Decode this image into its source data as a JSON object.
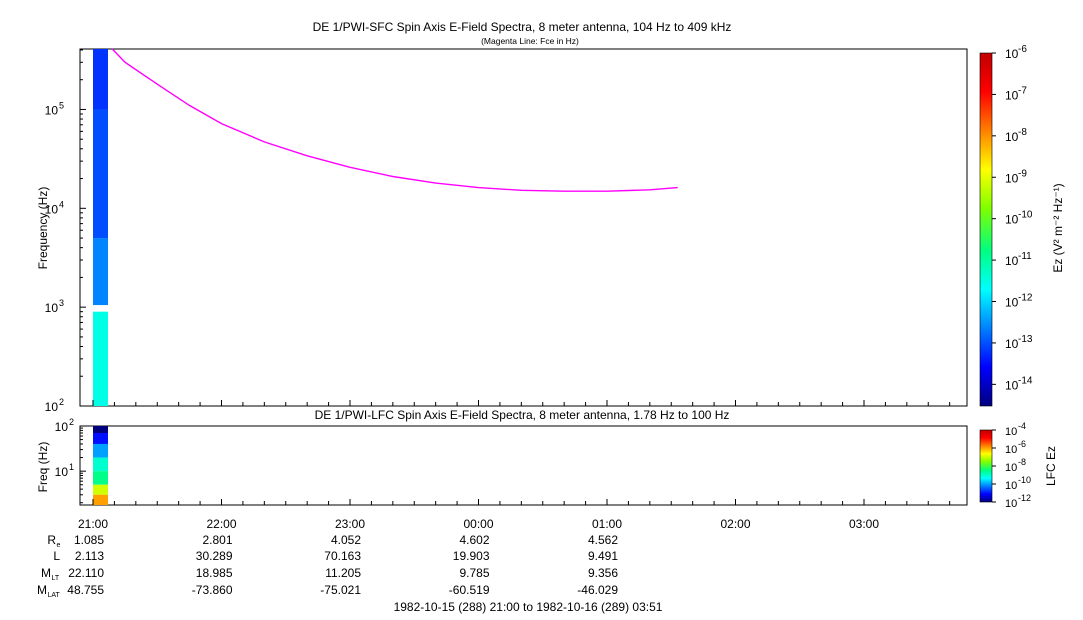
{
  "upper_panel": {
    "title": "DE 1/PWI-SFC  Spin Axis E-Field Spectra, 8 meter antenna, 104 Hz to 409 kHz",
    "subtitle": "(Magenta Line: Fce in Hz)",
    "ylabel": "Frequency (Hz)",
    "colorbar_label": "Ez (V² m⁻² Hz⁻¹)"
  },
  "lower_panel": {
    "title": "DE 1/PWI-LFC  Spin Axis E-Field Spectra, 8 meter antenna, 1.78 Hz to 100 Hz",
    "ylabel": "Freq (Hz)",
    "colorbar_label": "LFC Ez"
  },
  "time_axis": {
    "ticks": [
      "21:00",
      "22:00",
      "23:00",
      "00:00",
      "01:00",
      "02:00",
      "03:00"
    ],
    "range_label": "1982-10-15 (288) 21:00 to 1982-10-16 (289) 03:51"
  },
  "ephemeris": [
    {
      "label": "R",
      "sub": "e",
      "values": [
        "1.085",
        "2.801",
        "4.052",
        "4.602",
        "4.562"
      ]
    },
    {
      "label": "L",
      "sub": "",
      "values": [
        "2.113",
        "30.289",
        "70.163",
        "19.903",
        "9.491"
      ]
    },
    {
      "label": "M",
      "sub": "LT",
      "values": [
        "22.110",
        "18.985",
        "11.205",
        "9.785",
        "9.356"
      ]
    },
    {
      "label": "M",
      "sub": "LAT",
      "values": [
        "48.755",
        "-73.860",
        "-75.021",
        "-60.519",
        "-46.029"
      ]
    }
  ],
  "colors": {
    "fce_line": "#ff00ff",
    "colormap": [
      "#00007f",
      "#0000ff",
      "#0080ff",
      "#00ffff",
      "#00ff80",
      "#80ff00",
      "#ffff00",
      "#ff8000",
      "#ff0000",
      "#c00000"
    ]
  },
  "chart_data": [
    {
      "type": "heatmap",
      "title": "DE 1/PWI-SFC  Spin Axis E-Field Spectra, 8 meter antenna, 104 Hz to 409 kHz",
      "subtitle": "(Magenta Line: Fce in Hz)",
      "xlabel": "",
      "ylabel": "Frequency (Hz)",
      "y_scale": "log",
      "ylim": [
        100,
        409000
      ],
      "y_ticks": [
        {
          "exp": "2",
          "value": 100
        },
        {
          "exp": "3",
          "value": 1000
        },
        {
          "exp": "4",
          "value": 10000
        },
        {
          "exp": "5",
          "value": 100000
        }
      ],
      "colorbar": {
        "label": "Ez (V² m⁻² Hz⁻¹)",
        "scale": "log",
        "range": [
          3e-15,
          1e-06
        ],
        "ticks": [
          {
            "exp": "-6",
            "value": 1e-06
          },
          {
            "exp": "-7",
            "value": 1e-07
          },
          {
            "exp": "-8",
            "value": 1e-08
          },
          {
            "exp": "-9",
            "value": 1e-09
          },
          {
            "exp": "-10",
            "value": 1e-10
          },
          {
            "exp": "-11",
            "value": 1e-11
          },
          {
            "exp": "-12",
            "value": 1e-12
          },
          {
            "exp": "-13",
            "value": 1e-13
          },
          {
            "exp": "-14",
            "value": 1e-14
          }
        ]
      },
      "data_strip": {
        "time_start": "21:00",
        "time_end": "21:07",
        "levels": [
          {
            "f_low": 100,
            "f_high": 900,
            "level_log10": -11.5
          },
          {
            "f_low": 1050,
            "f_high": 5000,
            "level_log10": -12.6
          },
          {
            "f_low": 5000,
            "f_high": 100000,
            "level_log10": -13.0
          },
          {
            "f_low": 100000,
            "f_high": 409000,
            "level_log10": -13.2
          }
        ]
      },
      "series": [
        {
          "name": "Fce in Hz",
          "x": [
            "21:09",
            "21:15",
            "21:30",
            "21:45",
            "22:00",
            "22:20",
            "22:40",
            "23:00",
            "23:20",
            "23:40",
            "00:00",
            "00:20",
            "00:40",
            "01:00",
            "01:20",
            "01:33"
          ],
          "y": [
            409000,
            300000,
            180000,
            110000,
            72000,
            47000,
            34000,
            26000,
            21000,
            18000,
            16200,
            15200,
            14900,
            14900,
            15400,
            16200
          ]
        }
      ]
    },
    {
      "type": "heatmap",
      "title": "DE 1/PWI-LFC  Spin Axis E-Field Spectra, 8 meter antenna, 1.78 Hz to 100 Hz",
      "xlabel": "",
      "ylabel": "Freq (Hz)",
      "y_scale": "log",
      "ylim": [
        1.78,
        100
      ],
      "y_ticks": [
        {
          "exp": "1",
          "value": 10
        },
        {
          "exp": "2",
          "value": 100
        }
      ],
      "colorbar": {
        "label": "LFC Ez",
        "scale": "log",
        "range": [
          1e-12,
          0.0001
        ],
        "ticks": [
          {
            "exp": "-4",
            "value": 0.0001
          },
          {
            "exp": "-6",
            "value": 1e-06
          },
          {
            "exp": "-8",
            "value": 1e-08
          },
          {
            "exp": "-10",
            "value": 1e-10
          },
          {
            "exp": "-12",
            "value": 1e-12
          }
        ]
      },
      "data_strip": {
        "time_start": "21:00",
        "time_end": "21:07",
        "levels": [
          {
            "f_low": 70,
            "f_high": 100,
            "level_log10": -12.0
          },
          {
            "f_low": 40,
            "f_high": 70,
            "level_log10": -11.0
          },
          {
            "f_low": 20,
            "f_high": 40,
            "level_log10": -10.0
          },
          {
            "f_low": 10,
            "f_high": 20,
            "level_log10": -9.0
          },
          {
            "f_low": 5,
            "f_high": 10,
            "level_log10": -8.5
          },
          {
            "f_low": 3,
            "f_high": 5,
            "level_log10": -7.0
          },
          {
            "f_low": 1.78,
            "f_high": 3,
            "level_log10": -6.0
          }
        ]
      }
    }
  ]
}
